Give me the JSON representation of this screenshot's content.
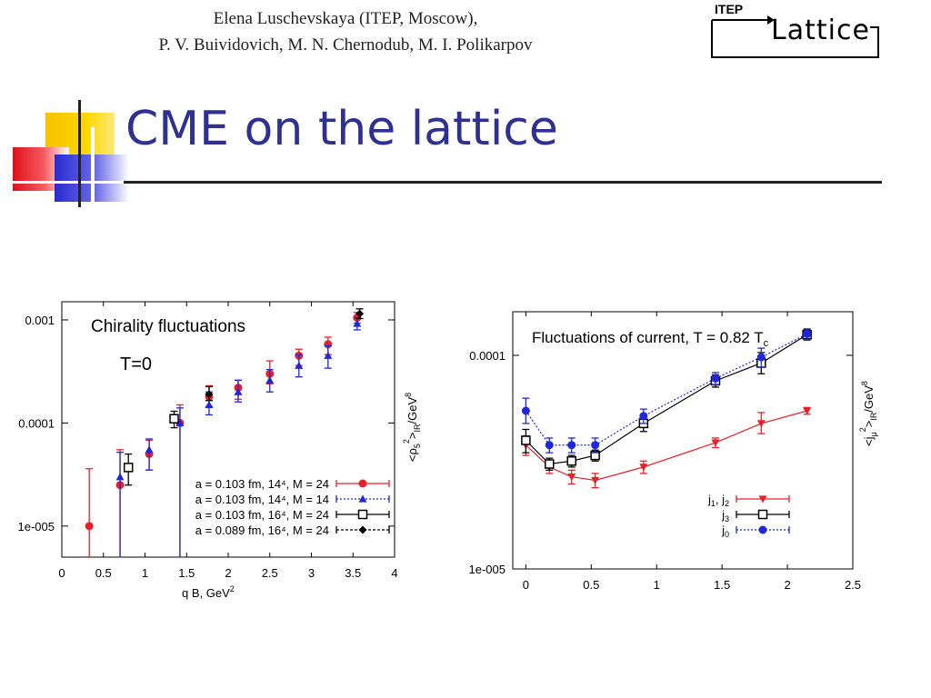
{
  "header": {
    "authors_line1": "Elena Luschevskaya (ITEP, Moscow),",
    "authors_line2": "P. V. Buividovich, M. N. Chernodub, M. I. Polikarpov",
    "logo_top": "ITEP",
    "logo_main": "Lattice"
  },
  "slide": {
    "title": "CME on the lattice"
  },
  "colors": {
    "title": "#2e3192",
    "red": "#e8202a",
    "blue": "#1f28d8",
    "black": "#000000"
  },
  "chart_data": [
    {
      "type": "scatter",
      "title": "Chirality fluctuations",
      "annotation": "T=0",
      "xlabel": "q B, GeV",
      "xlabel_sup": "2",
      "ylabel_main": "<ρ",
      "ylabel_sub": "5",
      "ylabel_sup": "2",
      "ylabel_tail": ">",
      "ylabel_tail_sub": "IR",
      "ylabel_unit": "/GeV",
      "ylabel_unit_sup": "8",
      "xlim": [
        0,
        4
      ],
      "ylim": [
        5e-06,
        0.0015
      ],
      "yscale": "log",
      "x_ticks": [
        "0",
        "0.5",
        "1",
        "1.5",
        "2",
        "2.5",
        "3",
        "3.5",
        "4"
      ],
      "y_ticks": [
        "0.001",
        "0.0001",
        "1e-005"
      ],
      "legend_position": "bottom-right",
      "series": [
        {
          "name": "a = 0.103 fm, 14⁴, M = 24",
          "marker": "circle",
          "color": "#e8202a",
          "points": [
            {
              "x": 0.33,
              "y": 1e-05,
              "lo": 4.5e-06,
              "hi": 3.6e-05
            },
            {
              "x": 0.7,
              "y": 2.5e-05,
              "lo": 4.5e-06,
              "hi": 5.5e-05
            },
            {
              "x": 1.05,
              "y": 5e-05,
              "lo": 3.5e-05,
              "hi": 6.8e-05
            },
            {
              "x": 1.42,
              "y": 0.0001,
              "lo": 4.5e-06,
              "hi": 0.00015
            },
            {
              "x": 1.77,
              "y": 0.00018,
              "lo": 0.000145,
              "hi": 0.00023
            },
            {
              "x": 2.12,
              "y": 0.00022,
              "lo": 0.00017,
              "hi": 0.00026
            },
            {
              "x": 2.5,
              "y": 0.0003,
              "lo": 0.00024,
              "hi": 0.0004
            },
            {
              "x": 2.85,
              "y": 0.00045,
              "lo": 0.00036,
              "hi": 0.00052
            },
            {
              "x": 3.2,
              "y": 0.00058,
              "lo": 0.00046,
              "hi": 0.00068
            },
            {
              "x": 3.55,
              "y": 0.00105,
              "lo": 0.00093,
              "hi": 0.00118
            }
          ]
        },
        {
          "name": "a = 0.103 fm, 14⁴, M = 14",
          "marker": "triangle",
          "color": "#1f28d8",
          "points": [
            {
              "x": 0.7,
              "y": 3e-05,
              "lo": 4.5e-06,
              "hi": 5.2e-05
            },
            {
              "x": 1.05,
              "y": 5.5e-05,
              "lo": 3.5e-05,
              "hi": 7e-05
            },
            {
              "x": 1.42,
              "y": 0.0001,
              "lo": 4.5e-06,
              "hi": 0.00014
            },
            {
              "x": 1.77,
              "y": 0.00015,
              "lo": 0.00012,
              "hi": 0.0002
            },
            {
              "x": 2.12,
              "y": 0.0002,
              "lo": 0.00016,
              "hi": 0.00026
            },
            {
              "x": 2.5,
              "y": 0.00026,
              "lo": 0.0002,
              "hi": 0.00033
            },
            {
              "x": 2.85,
              "y": 0.00036,
              "lo": 0.00028,
              "hi": 0.00046
            },
            {
              "x": 3.2,
              "y": 0.00045,
              "lo": 0.00034,
              "hi": 0.00056
            },
            {
              "x": 3.55,
              "y": 0.00092,
              "lo": 0.0008,
              "hi": 0.00105
            }
          ]
        },
        {
          "name": "a = 0.103 fm, 16⁴, M = 24",
          "marker": "square-open",
          "color": "#000000",
          "points": [
            {
              "x": 0.8,
              "y": 3.7e-05,
              "lo": 2.5e-05,
              "hi": 5e-05
            },
            {
              "x": 1.35,
              "y": 0.00011,
              "lo": 9e-05,
              "hi": 0.00013
            }
          ]
        },
        {
          "name": "a = 0.089 fm, 16⁴, M = 24",
          "marker": "diamond",
          "color": "#000000",
          "points": [
            {
              "x": 1.77,
              "y": 0.00019,
              "lo": 0.000165,
              "hi": 0.000225
            },
            {
              "x": 3.58,
              "y": 0.00115,
              "lo": 0.00103,
              "hi": 0.00128
            }
          ]
        }
      ]
    },
    {
      "type": "line",
      "title": "Fluctuations of current, T = 0.82 T",
      "title_sub": "c",
      "xlabel": "",
      "ylabel_main": "<j",
      "ylabel_sub": "μ",
      "ylabel_sup": "2",
      "ylabel_tail": ">",
      "ylabel_tail_sub": "IR",
      "ylabel_unit": "/GeV",
      "ylabel_unit_sup": "8",
      "xlim": [
        -0.1,
        2.5
      ],
      "ylim": [
        1e-05,
        0.00016
      ],
      "yscale": "log",
      "x_ticks": [
        "0",
        "0.5",
        "1",
        "1.5",
        "2",
        "2.5"
      ],
      "y_ticks": [
        "0.0001",
        "1e-005"
      ],
      "legend_position": "bottom-right",
      "series": [
        {
          "name": "j",
          "name_sub": "1",
          "name_mid": ", j",
          "name_sub2": "2",
          "marker": "triangle-down",
          "color": "#e8202a",
          "points": [
            {
              "x": 0,
              "y": 3.8e-05,
              "lo": 3.4e-05,
              "hi": 4.2e-05
            },
            {
              "x": 0.18,
              "y": 3e-05,
              "lo": 2.8e-05,
              "hi": 3.2e-05
            },
            {
              "x": 0.35,
              "y": 2.7e-05,
              "lo": 2.5e-05,
              "hi": 2.9e-05
            },
            {
              "x": 0.53,
              "y": 2.6e-05,
              "lo": 2.4e-05,
              "hi": 2.8e-05
            },
            {
              "x": 0.9,
              "y": 3e-05,
              "lo": 2.8e-05,
              "hi": 3.2e-05
            },
            {
              "x": 1.45,
              "y": 3.9e-05,
              "lo": 3.7e-05,
              "hi": 4.1e-05
            },
            {
              "x": 1.8,
              "y": 4.8e-05,
              "lo": 4.3e-05,
              "hi": 5.4e-05
            },
            {
              "x": 2.15,
              "y": 5.5e-05,
              "lo": 5.3e-05,
              "hi": 5.7e-05
            }
          ]
        },
        {
          "name": "j",
          "name_sub": "3",
          "marker": "square-open",
          "color": "#000000",
          "points": [
            {
              "x": 0,
              "y": 4e-05,
              "lo": 3.5e-05,
              "hi": 4.5e-05
            },
            {
              "x": 0.18,
              "y": 3.1e-05,
              "lo": 2.9e-05,
              "hi": 3.3e-05
            },
            {
              "x": 0.35,
              "y": 3.2e-05,
              "lo": 3e-05,
              "hi": 3.4e-05
            },
            {
              "x": 0.53,
              "y": 3.4e-05,
              "lo": 3.2e-05,
              "hi": 3.6e-05
            },
            {
              "x": 0.9,
              "y": 4.8e-05,
              "lo": 4.4e-05,
              "hi": 5.2e-05
            },
            {
              "x": 1.45,
              "y": 7.6e-05,
              "lo": 7.1e-05,
              "hi": 8.1e-05
            },
            {
              "x": 1.8,
              "y": 9.2e-05,
              "lo": 8.2e-05,
              "hi": 0.000103
            },
            {
              "x": 2.15,
              "y": 0.000125,
              "lo": 0.000118,
              "hi": 0.000132
            }
          ]
        },
        {
          "name": "j",
          "name_sub": "0",
          "marker": "circle",
          "color": "#1f28d8",
          "points": [
            {
              "x": 0,
              "y": 5.5e-05,
              "lo": 4.8e-05,
              "hi": 6.3e-05
            },
            {
              "x": 0.18,
              "y": 3.8e-05,
              "lo": 3.5e-05,
              "hi": 4.1e-05
            },
            {
              "x": 0.35,
              "y": 3.8e-05,
              "lo": 3.5e-05,
              "hi": 4.1e-05
            },
            {
              "x": 0.53,
              "y": 3.8e-05,
              "lo": 3.5e-05,
              "hi": 4.1e-05
            },
            {
              "x": 0.9,
              "y": 5.2e-05,
              "lo": 4.8e-05,
              "hi": 5.6e-05
            },
            {
              "x": 1.45,
              "y": 7.8e-05,
              "lo": 7.3e-05,
              "hi": 8.3e-05
            },
            {
              "x": 1.8,
              "y": 9.8e-05,
              "lo": 8.8e-05,
              "hi": 0.000108
            },
            {
              "x": 2.15,
              "y": 0.000126,
              "lo": 0.000119,
              "hi": 0.000133
            }
          ]
        }
      ]
    }
  ]
}
